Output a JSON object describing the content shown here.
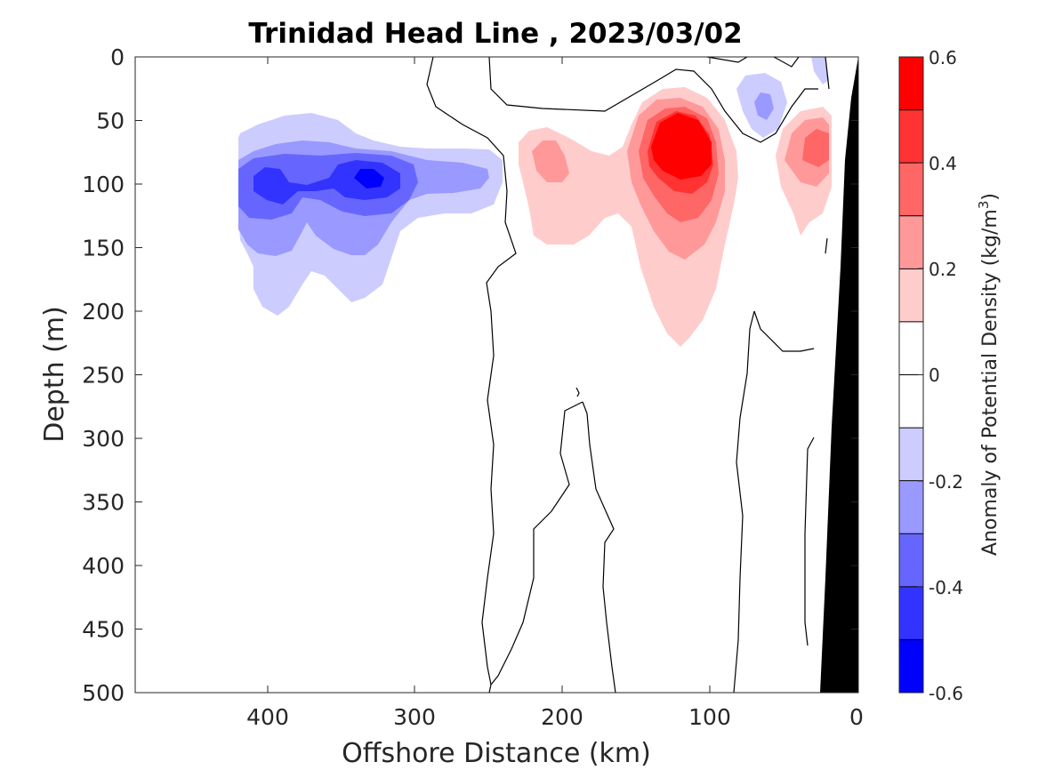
{
  "chart_data": {
    "type": "contour",
    "title": "Trinidad Head Line , 2023/03/02",
    "xlabel": "Offshore Distance (km)",
    "ylabel": "Depth (m)",
    "xlim": [
      490,
      0
    ],
    "ylim": [
      0,
      500
    ],
    "x_direction": "reversed",
    "y_direction": "reversed",
    "x_ticks": [
      "400",
      "300",
      "200",
      "100",
      "0"
    ],
    "y_ticks": [
      "0",
      "50",
      "100",
      "150",
      "200",
      "250",
      "300",
      "350",
      "400",
      "450",
      "500"
    ],
    "colorbar": {
      "label_main": "Anomaly of Potential Density (kg/m",
      "label_exp": "3",
      "label_close": ")",
      "range": [
        -0.6,
        0.6
      ],
      "tick_labels": [
        "0.6",
        "0.4",
        "0.2",
        "0",
        "-0.2",
        "-0.4",
        "-0.6"
      ],
      "levels": [
        {
          "min": -0.6,
          "max": -0.5,
          "color": "#0000ff"
        },
        {
          "min": -0.5,
          "max": -0.4,
          "color": "#3333ff"
        },
        {
          "min": -0.4,
          "max": -0.3,
          "color": "#6666ff"
        },
        {
          "min": -0.3,
          "max": -0.2,
          "color": "#9999ff"
        },
        {
          "min": -0.2,
          "max": -0.1,
          "color": "#ccccff"
        },
        {
          "min": -0.1,
          "max": 0.0,
          "color": "#ffffff"
        },
        {
          "min": 0.0,
          "max": 0.1,
          "color": "#ffffff"
        },
        {
          "min": 0.1,
          "max": 0.2,
          "color": "#ffcccc"
        },
        {
          "min": 0.2,
          "max": 0.3,
          "color": "#ff9999"
        },
        {
          "min": 0.3,
          "max": 0.4,
          "color": "#ff6666"
        },
        {
          "min": 0.4,
          "max": 0.5,
          "color": "#ff3333"
        },
        {
          "min": 0.5,
          "max": 0.6,
          "color": "#ff0000"
        }
      ]
    },
    "features": [
      {
        "name": "negative-anomaly-core-west",
        "center_km": 400,
        "center_depth_m": 100,
        "min_value": -0.5
      },
      {
        "name": "negative-anomaly-core-east",
        "center_km": 330,
        "center_depth_m": 95,
        "min_value": -0.55
      },
      {
        "name": "positive-anomaly-core",
        "center_km": 118,
        "center_depth_m": 70,
        "max_value": 0.6
      },
      {
        "name": "positive-anomaly-nearshore",
        "center_km": 35,
        "center_depth_m": 75,
        "max_value": 0.35
      },
      {
        "name": "negative-anomaly-nearshore",
        "center_km": 70,
        "center_depth_m": 35,
        "min_value": -0.3
      }
    ],
    "bathymetry_color": "#000000"
  }
}
